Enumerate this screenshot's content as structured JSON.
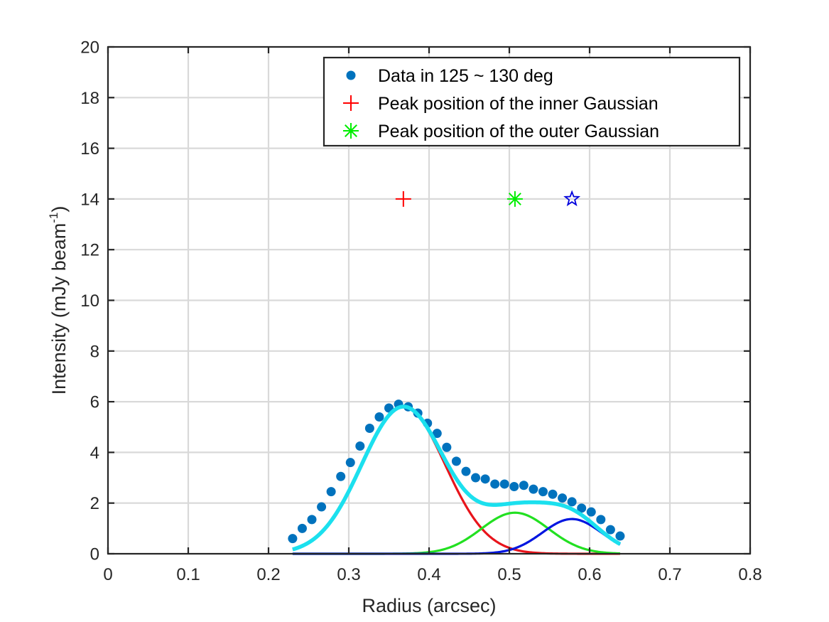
{
  "chart_data": {
    "type": "line",
    "title": "",
    "xlabel": "Radius (arcsec)",
    "ylabel": "Intensity (mJy beam",
    "ylabel_superscript": "-1",
    "ylabel_suffix": ")",
    "xlim": [
      0,
      0.8
    ],
    "ylim": [
      0,
      20
    ],
    "xticks": [
      0,
      0.1,
      0.2,
      0.3,
      0.4,
      0.5,
      0.6,
      0.7,
      0.8
    ],
    "xtick_labels": [
      "0",
      "0.1",
      "0.2",
      "0.3",
      "0.4",
      "0.5",
      "0.6",
      "0.7",
      "0.8"
    ],
    "yticks": [
      0,
      2,
      4,
      6,
      8,
      10,
      12,
      14,
      16,
      18,
      20
    ],
    "ytick_labels": [
      "0",
      "2",
      "4",
      "6",
      "8",
      "10",
      "12",
      "14",
      "16",
      "18",
      "20"
    ],
    "grid": true,
    "legend_position": "top-right",
    "data_points": {
      "name": "Data in 125 ~ 130 deg",
      "color": "#0072BD",
      "x": [
        0.23,
        0.242,
        0.254,
        0.266,
        0.278,
        0.29,
        0.302,
        0.314,
        0.326,
        0.338,
        0.35,
        0.362,
        0.374,
        0.386,
        0.398,
        0.41,
        0.422,
        0.434,
        0.446,
        0.458,
        0.47,
        0.482,
        0.494,
        0.506,
        0.518,
        0.53,
        0.542,
        0.554,
        0.566,
        0.578,
        0.59,
        0.602,
        0.614,
        0.626,
        0.638
      ],
      "y": [
        0.6,
        1.0,
        1.35,
        1.85,
        2.45,
        3.05,
        3.6,
        4.25,
        4.95,
        5.4,
        5.75,
        5.9,
        5.8,
        5.55,
        5.15,
        4.75,
        4.2,
        3.65,
        3.25,
        3.0,
        2.95,
        2.75,
        2.75,
        2.65,
        2.7,
        2.55,
        2.45,
        2.35,
        2.2,
        2.05,
        1.8,
        1.65,
        1.35,
        0.95,
        0.7
      ]
    },
    "inner_gaussian": {
      "amplitude": 5.8,
      "center": 0.368,
      "sigma": 0.052,
      "color": "#E8141B"
    },
    "middle_gaussian": {
      "amplitude": 1.62,
      "center": 0.507,
      "sigma": 0.042,
      "color": "#22E021"
    },
    "outer_gaussian": {
      "amplitude": 1.37,
      "center": 0.578,
      "sigma": 0.037,
      "color": "#0015E0"
    },
    "total_fit_color": "#1BE0EE",
    "fit_range": [
      0.23,
      0.638
    ],
    "peak_markers": [
      {
        "name": "Peak position of the inner Gaussian",
        "x": 0.368,
        "y": 14,
        "marker": "plus",
        "color": "#FF0000"
      },
      {
        "name": "Peak position of the outer Gaussian",
        "x": 0.507,
        "y": 14,
        "marker": "asterisk",
        "color": "#00EE00"
      },
      {
        "name": "",
        "x": 0.578,
        "y": 14,
        "marker": "star",
        "color": "#0000DD"
      }
    ],
    "legend": [
      {
        "label": "Data in 125 ~ 130 deg",
        "marker": "dot",
        "color": "#0072BD"
      },
      {
        "label": "Peak position of the inner Gaussian",
        "marker": "plus",
        "color": "#FF0000"
      },
      {
        "label": "Peak position of the outer Gaussian",
        "marker": "asterisk",
        "color": "#00EE00"
      }
    ]
  }
}
